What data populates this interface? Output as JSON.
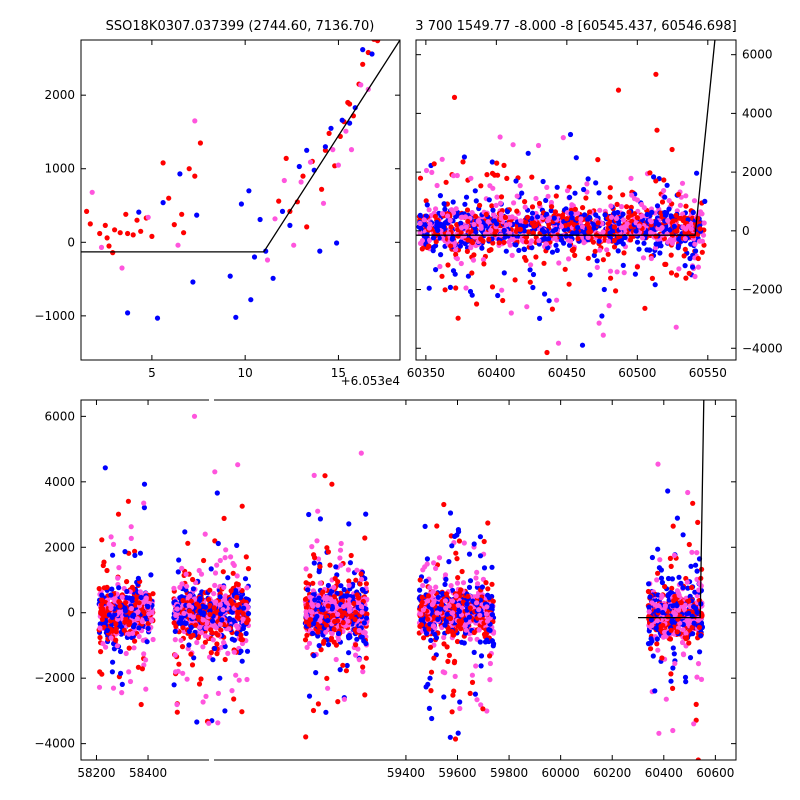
{
  "chart_data": [
    {
      "id": "top-left",
      "type": "scatter",
      "title": "SSO18K0307.037399 (2744.60, 7136.70)",
      "xlim": [
        1.2,
        18.3
      ],
      "ylim": [
        -1600,
        2750
      ],
      "xticks": [
        5,
        10,
        15
      ],
      "xtick_labels": [
        "5",
        "10",
        "15"
      ],
      "yticks": [
        -1000,
        0,
        1000,
        2000
      ],
      "ytick_labels": [
        "−1000",
        "0",
        "1000",
        "2000"
      ],
      "offset_text": "+6.053e4",
      "series": [
        {
          "color": "#ff0000",
          "points": [
            [
              1.5,
              420
            ],
            [
              1.7,
              250
            ],
            [
              2.2,
              120
            ],
            [
              2.5,
              230
            ],
            [
              2.6,
              60
            ],
            [
              2.7,
              -50
            ],
            [
              2.9,
              -140
            ],
            [
              3.0,
              170
            ],
            [
              3.3,
              130
            ],
            [
              3.6,
              380
            ],
            [
              3.7,
              120
            ],
            [
              4.0,
              100
            ],
            [
              4.2,
              300
            ],
            [
              4.4,
              150
            ],
            [
              4.7,
              330
            ],
            [
              5.0,
              80
            ],
            [
              5.6,
              1080
            ],
            [
              5.9,
              600
            ],
            [
              6.2,
              240
            ],
            [
              6.6,
              380
            ],
            [
              6.7,
              130
            ],
            [
              7.0,
              1000
            ],
            [
              7.3,
              900
            ],
            [
              7.6,
              1350
            ],
            [
              12.2,
              1140
            ],
            [
              12.8,
              550
            ],
            [
              13.1,
              900
            ],
            [
              13.6,
              1100
            ],
            [
              14.1,
              720
            ],
            [
              14.5,
              1480
            ],
            [
              14.8,
              1040
            ],
            [
              15.1,
              1440
            ],
            [
              15.3,
              1640
            ],
            [
              15.6,
              1880
            ],
            [
              15.8,
              1720
            ],
            [
              16.1,
              2150
            ],
            [
              16.3,
              2420
            ],
            [
              16.6,
              2580
            ],
            [
              16.9,
              2760
            ],
            [
              13.3,
              210
            ],
            [
              11.8,
              560
            ],
            [
              12.4,
              420
            ],
            [
              14.3,
              1250
            ],
            [
              15.5,
              1900
            ],
            [
              17.1,
              2740
            ]
          ]
        },
        {
          "color": "#0000ff",
          "points": [
            [
              3.7,
              -960
            ],
            [
              4.3,
              410
            ],
            [
              5.3,
              -1030
            ],
            [
              5.6,
              540
            ],
            [
              6.5,
              930
            ],
            [
              7.2,
              -540
            ],
            [
              7.4,
              370
            ],
            [
              9.2,
              -460
            ],
            [
              9.5,
              -1020
            ],
            [
              9.8,
              520
            ],
            [
              10.2,
              700
            ],
            [
              10.5,
              -200
            ],
            [
              10.8,
              310
            ],
            [
              11.1,
              -120
            ],
            [
              11.5,
              -490
            ],
            [
              12.0,
              420
            ],
            [
              12.4,
              230
            ],
            [
              12.9,
              1030
            ],
            [
              13.3,
              1250
            ],
            [
              13.7,
              980
            ],
            [
              14.0,
              -120
            ],
            [
              14.3,
              1300
            ],
            [
              14.6,
              1550
            ],
            [
              14.9,
              -10
            ],
            [
              15.2,
              1660
            ],
            [
              15.6,
              1620
            ],
            [
              15.9,
              1830
            ],
            [
              16.3,
              2620
            ],
            [
              16.8,
              2560
            ],
            [
              10.3,
              -780
            ]
          ]
        },
        {
          "color": "#ff55dd",
          "points": [
            [
              1.8,
              680
            ],
            [
              2.3,
              -70
            ],
            [
              3.4,
              -350
            ],
            [
              4.8,
              340
            ],
            [
              6.4,
              -40
            ],
            [
              7.3,
              1650
            ],
            [
              11.2,
              -240
            ],
            [
              11.6,
              320
            ],
            [
              12.1,
              840
            ],
            [
              12.6,
              -40
            ],
            [
              13.0,
              820
            ],
            [
              13.5,
              1090
            ],
            [
              14.2,
              530
            ],
            [
              14.7,
              1260
            ],
            [
              15.0,
              1050
            ],
            [
              15.4,
              1510
            ],
            [
              15.7,
              1260
            ],
            [
              16.2,
              2140
            ],
            [
              16.6,
              2080
            ]
          ]
        }
      ],
      "lines": [
        {
          "color": "#000000",
          "points": [
            [
              1.2,
              -130
            ],
            [
              11.0,
              -130
            ],
            [
              18.3,
              2750
            ]
          ]
        }
      ]
    },
    {
      "id": "top-right",
      "type": "scatter",
      "title": "3 700 1549.77 -8.000 -8 [60545.437, 60546.698]",
      "xlim": [
        60343,
        60570
      ],
      "ylim": [
        -4400,
        6500
      ],
      "xticks": [
        60350,
        60400,
        60450,
        60500,
        60550
      ],
      "xtick_labels": [
        "60350",
        "60400",
        "60450",
        "60500",
        "60550"
      ],
      "yticks": [
        -4000,
        -2000,
        0,
        2000,
        4000,
        6000
      ],
      "ytick_labels": [
        "−4000",
        "−2000",
        "0",
        "2000",
        "4000",
        "6000"
      ],
      "yaxis_side": "right",
      "clusters": [
        {
          "x_range": [
            60345,
            60548
          ],
          "y_mean": 80,
          "count": 1500
        }
      ],
      "lines": [
        {
          "color": "#000000",
          "points": [
            [
              60343,
              -150
            ],
            [
              60541,
              -150
            ],
            [
              60555,
              6500
            ]
          ]
        }
      ]
    },
    {
      "id": "bottom",
      "type": "scatter",
      "title": "",
      "xlim": [
        58140,
        60680
      ],
      "ylim": [
        -4500,
        6500
      ],
      "xticks": [
        58200,
        58400,
        59400,
        59600,
        59800,
        60000,
        60200,
        60400,
        60600
      ],
      "xtick_labels": [
        "58200",
        "58400",
        "59400",
        "59600",
        "59800",
        "60000",
        "60200",
        "60400",
        "60600"
      ],
      "yticks": [
        -4000,
        -2000,
        0,
        2000,
        4000,
        6000
      ],
      "ytick_labels": [
        "−4000",
        "−2000",
        "0",
        "2000",
        "4000",
        "6000"
      ],
      "clusters": [
        {
          "x_range": [
            58210,
            58420
          ],
          "y_mean": 0,
          "count": 500
        },
        {
          "x_range": [
            58500,
            58790
          ],
          "y_mean": 0,
          "count": 750
        },
        {
          "x_range": [
            59010,
            59250
          ],
          "y_mean": 0,
          "count": 750
        },
        {
          "x_range": [
            59450,
            59740
          ],
          "y_mean": 0,
          "count": 750
        },
        {
          "x_range": [
            60340,
            60550
          ],
          "y_mean": -100,
          "count": 600
        }
      ],
      "lines": [
        {
          "color": "#000000",
          "points": [
            [
              60300,
              -150
            ],
            [
              60541,
              -150
            ],
            [
              60555,
              6500
            ]
          ]
        }
      ]
    }
  ]
}
